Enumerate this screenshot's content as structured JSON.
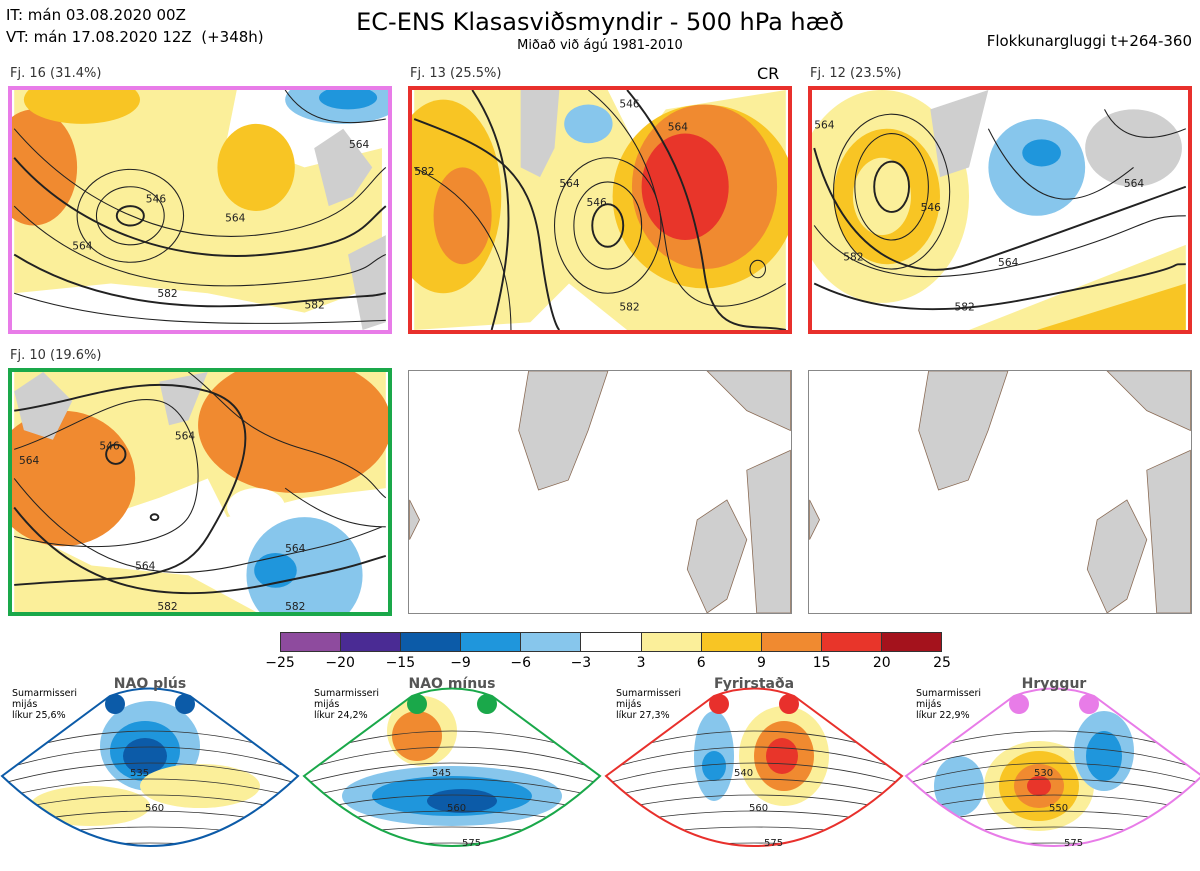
{
  "header": {
    "it_line": "IT: mán 03.08.2020 00Z",
    "vt_line": "VT: mán 17.08.2020 12Z  (+348h)",
    "title": "EC-ENS Klasasviðsmyndir - 500 hPa hæð",
    "subtitle": "Miðað við ágú 1981-2010",
    "window": "Flokkunargluggi t+264-360"
  },
  "clusters": [
    {
      "label": "Fj. 16 (31.4%)",
      "frame_color": "#e87ce8",
      "contours": [
        "546",
        "564",
        "564",
        "582",
        "582",
        "564"
      ]
    },
    {
      "label": "Fj. 13 (25.5%)",
      "frame_color": "#e8302c",
      "badge": "CR",
      "contours": [
        "564",
        "582",
        "546",
        "564",
        "582",
        "546"
      ]
    },
    {
      "label": "Fj. 12 (23.5%)",
      "frame_color": "#e8302c",
      "contours": [
        "564",
        "546",
        "582",
        "564",
        "582",
        "564"
      ]
    },
    {
      "label": "Fj. 10 (19.6%)",
      "frame_color": "#1aa84a",
      "contours": [
        "564",
        "546",
        "564",
        "564",
        "564",
        "582",
        "582"
      ]
    }
  ],
  "legend": {
    "colors": [
      "#8e4b9e",
      "#4a2b94",
      "#0c5ba8",
      "#1f96dc",
      "#87c6ec",
      "#ffffff",
      "#fbef9a",
      "#f8c524",
      "#f08a30",
      "#e8352a",
      "#a4121c"
    ],
    "ticks": [
      "−25",
      "−20",
      "−15",
      "−9",
      "−6",
      "−3",
      "3",
      "6",
      "9",
      "15",
      "20",
      "25"
    ]
  },
  "regimes": [
    {
      "name": "NAO plús",
      "color": "#0c5ba8",
      "season": "Sumarmisseri",
      "note1": "mijás",
      "prob": "líkur 25,6%",
      "contours": [
        "535",
        "560"
      ]
    },
    {
      "name": "NAO mínus",
      "color": "#1aa84a",
      "season": "Sumarmisseri",
      "note1": "mijás",
      "prob": "líkur 24,2%",
      "contours": [
        "545",
        "560",
        "575"
      ]
    },
    {
      "name": "Fyrirstaða",
      "color": "#e8302c",
      "season": "Sumarmisseri",
      "note1": "mijás",
      "prob": "líkur 27,3%",
      "contours": [
        "540",
        "560",
        "575"
      ]
    },
    {
      "name": "Hryggur",
      "color": "#e87ce8",
      "season": "Sumarmisseri",
      "note1": "mijás",
      "prob": "líkur 22,9%",
      "contours": [
        "530",
        "550",
        "575"
      ]
    }
  ]
}
